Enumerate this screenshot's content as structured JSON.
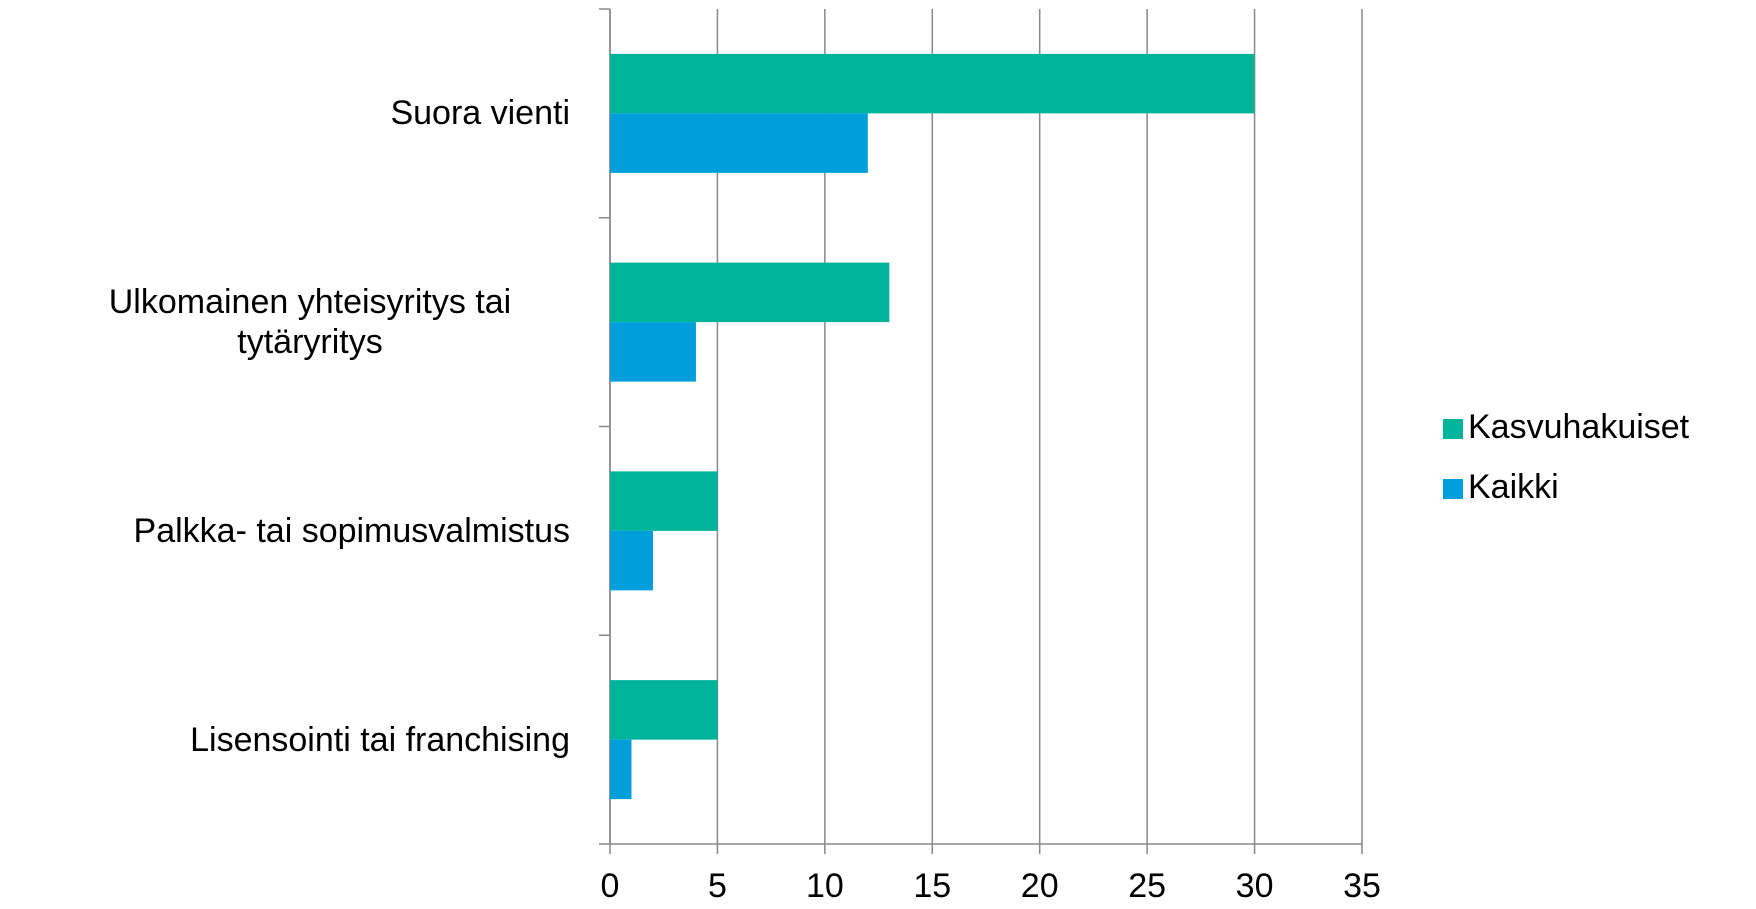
{
  "chart_data": {
    "type": "bar",
    "orientation": "horizontal",
    "categories": [
      "Suora vienti",
      "Ulkomainen yhteisyritys tai tytäryritys",
      "Palkka- tai sopimusvalmistus",
      "Lisensointi tai franchising"
    ],
    "series": [
      {
        "name": "Kasvuhakuiset",
        "color": "#00b39b",
        "values": [
          30,
          13,
          5,
          5
        ]
      },
      {
        "name": "Kaikki",
        "color": "#009fdb",
        "values": [
          12,
          4,
          2,
          1
        ]
      }
    ],
    "xlim": [
      0,
      35
    ],
    "xticks": [
      0,
      5,
      10,
      15,
      20,
      25,
      30,
      35
    ],
    "grid": true,
    "legend": "right"
  }
}
